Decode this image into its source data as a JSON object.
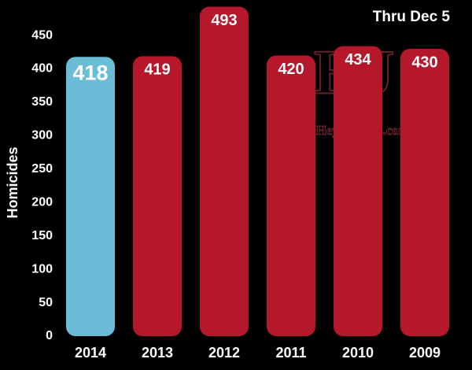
{
  "chart_data": {
    "type": "bar",
    "title": "Thru Dec 5",
    "y_label": "Homicides",
    "watermark": [
      "HJ",
      "©HeyJackass.com"
    ],
    "categories": [
      "2014",
      "2013",
      "2012",
      "2011",
      "2010",
      "2009"
    ],
    "values": [
      418,
      419,
      493,
      420,
      434,
      430
    ],
    "colors": [
      "#6bbdd7",
      "#b5172b",
      "#b5172b",
      "#b5172b",
      "#b5172b",
      "#b5172b"
    ],
    "ylim": [
      0,
      500
    ],
    "yticks": [
      0,
      50,
      100,
      150,
      200,
      250,
      300,
      350,
      400,
      450
    ],
    "grid": false
  }
}
